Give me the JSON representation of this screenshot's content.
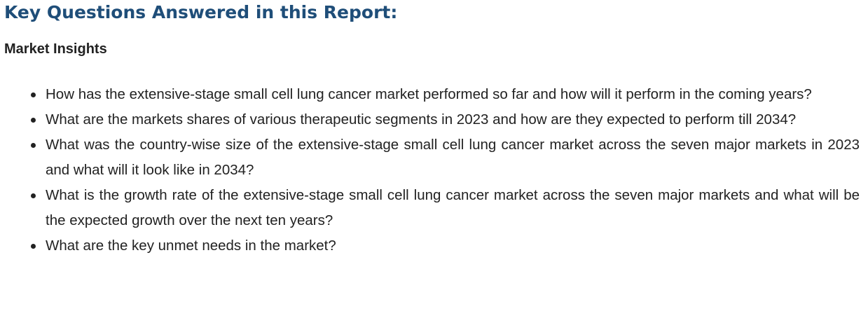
{
  "page": {
    "heading": "Key Questions Answered in this Report:",
    "section_heading": "Market Insights"
  },
  "questions": [
    "How has the extensive-stage small cell lung cancer market performed so far and how will it perform in the coming years?",
    "What are the markets shares of various therapeutic segments in 2023 and how are they expected to perform till 2034?",
    "What was the country-wise size of the extensive-stage small cell lung cancer market across the seven major markets in 2023 and what will it look like in 2034?",
    "What is the growth rate of the extensive-stage small cell lung cancer market across the seven major markets and what will be the expected growth over the next ten years?",
    "What are the key unmet needs in the market?"
  ],
  "colors": {
    "heading": "#1f4e79",
    "text": "#222222",
    "background": "#ffffff"
  }
}
